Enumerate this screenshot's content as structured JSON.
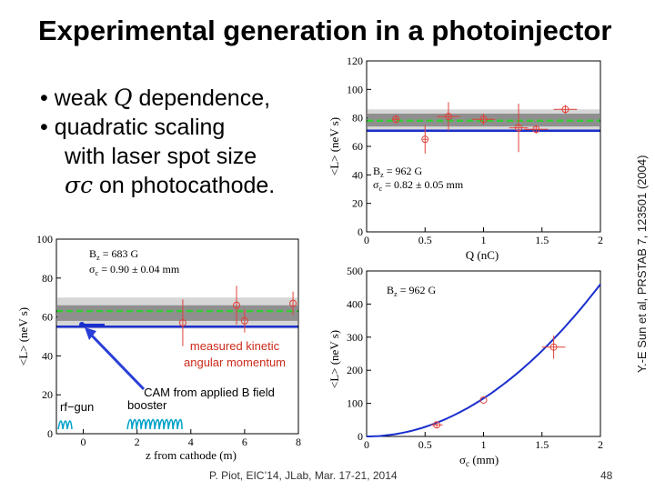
{
  "slide": {
    "title": "Experimental generation in a photoinjector",
    "bullet1_pre": "weak ",
    "bullet1_sym": "Q",
    "bullet1_post": " dependence,",
    "bullet2": "quadratic scaling",
    "bullet2_cont": "with laser spot size",
    "bullet2_sym": "σc",
    "bullet2_post": " on photocathode.",
    "bullet_marker": "•",
    "citation": "Y.-E Sun et al, PRSTAB 7, 123501 (2004)",
    "footer": "P. Piot, EIC’14, JLab, Mar. 17-21, 2014",
    "page_number": "48"
  },
  "annotations": {
    "kinetic": "measured kinetic",
    "kinetic2": "angular momentum",
    "cam": "CAM from applied B field",
    "rfgun": "rf−gun",
    "booster": "booster"
  },
  "chart_data": [
    {
      "type": "scatter",
      "name": "angular momentum vs charge",
      "xlabel": "Q (nC)",
      "ylabel": "<L> (neV s)",
      "xlim": [
        0,
        2
      ],
      "ylim": [
        0,
        120
      ],
      "xticks": [
        0,
        0.5,
        1,
        1.5,
        2
      ],
      "yticks": [
        0,
        20,
        40,
        60,
        80,
        100,
        120
      ],
      "annotation_line1": "B",
      "annotation_line1_sub": "z",
      "annotation_line1_val": " = 962 G",
      "annotation_line2": "σ",
      "annotation_line2_sub": "c",
      "annotation_line2_val": " = 0.82 ± 0.05 mm",
      "points": [
        {
          "x": 0.25,
          "y": 79,
          "xerr": 0.03,
          "yerr": 3
        },
        {
          "x": 0.5,
          "y": 65,
          "xerr": 0.02,
          "yerr": 10
        },
        {
          "x": 0.7,
          "y": 81,
          "xerr": 0.1,
          "yerr": 10
        },
        {
          "x": 1.0,
          "y": 79,
          "xerr": 0.1,
          "yerr": 4
        },
        {
          "x": 1.3,
          "y": 73,
          "xerr": 0.08,
          "yerr": 17
        },
        {
          "x": 1.45,
          "y": 72,
          "xerr": 0.1,
          "yerr": 3
        },
        {
          "x": 1.7,
          "y": 86,
          "xerr": 0.1,
          "yerr": 3
        }
      ],
      "measured_mean": 78,
      "measured_band": [
        [
          74,
          83
        ],
        [
          70,
          86
        ]
      ],
      "cam_line": 71
    },
    {
      "type": "line",
      "name": "angular momentum vs spot size",
      "xlabel": "σ",
      "xlabel_sub": "c",
      "xlabel_unit": " (mm)",
      "ylabel": "<L> (neV s)",
      "xlim": [
        0,
        2
      ],
      "ylim": [
        0,
        500
      ],
      "xticks": [
        0,
        0.5,
        1,
        1.5,
        2
      ],
      "yticks": [
        0,
        100,
        200,
        300,
        400,
        500
      ],
      "annotation_line1": "B",
      "annotation_line1_sub": "z",
      "annotation_line1_val": " = 962 G",
      "curve_coeff": 115,
      "points": [
        {
          "x": 0.6,
          "y": 35,
          "xerr": 0.05,
          "yerr": 8
        },
        {
          "x": 1.0,
          "y": 110,
          "xerr": 0.0,
          "yerr": 0
        },
        {
          "x": 1.6,
          "y": 270,
          "xerr": 0.1,
          "yerr": 35
        }
      ]
    },
    {
      "type": "line",
      "name": "angular momentum vs z from cathode",
      "xlabel": "z from cathode (m)",
      "ylabel": "<L> (neV s)",
      "xlim": [
        -1,
        8
      ],
      "ylim": [
        0,
        100
      ],
      "xticks": [
        0,
        2,
        4,
        6,
        8
      ],
      "yticks": [
        0,
        20,
        40,
        60,
        80,
        100
      ],
      "annotation_line1": "B",
      "annotation_line1_sub": "z",
      "annotation_line1_val": " = 683 G",
      "annotation_line2": "σ",
      "annotation_line2_sub": "c",
      "annotation_line2_val": " = 0.90 ± 0.04 mm",
      "points": [
        {
          "x": 3.7,
          "y": 57,
          "yerr": 12
        },
        {
          "x": 5.7,
          "y": 66,
          "yerr": 10
        },
        {
          "x": 6.0,
          "y": 58,
          "yerr": 6
        },
        {
          "x": 7.8,
          "y": 67,
          "yerr": 6
        }
      ],
      "measured_mean": 63,
      "measured_band": [
        [
          58,
          66
        ],
        [
          54,
          70
        ]
      ],
      "cam_line": 55
    }
  ]
}
